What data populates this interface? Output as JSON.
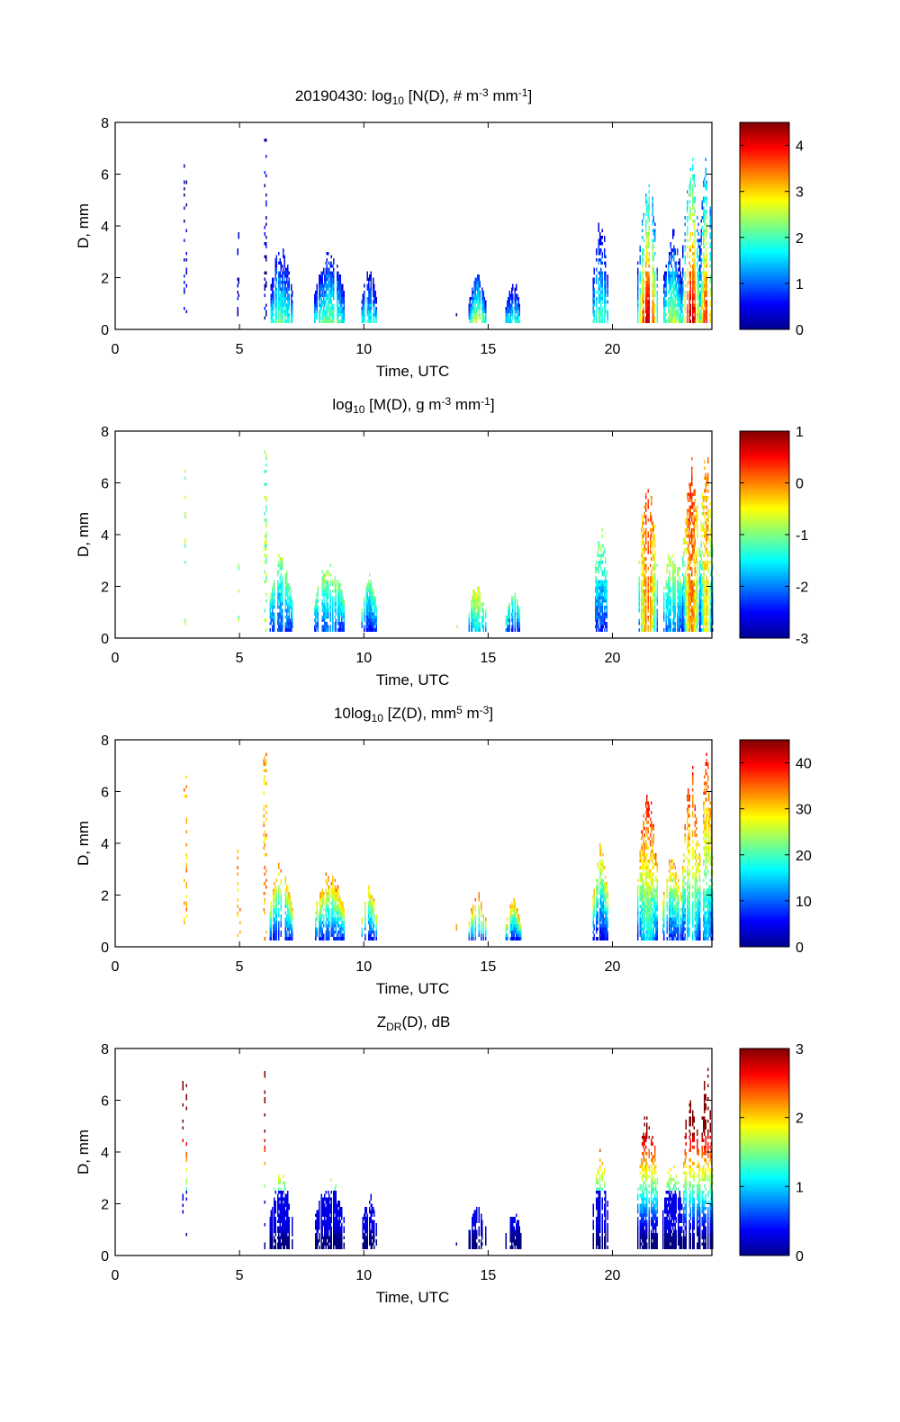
{
  "figure": {
    "date": "20190430",
    "colormap": "jet",
    "background": "#ffffff"
  },
  "chart_data": [
    {
      "type": "heatmap",
      "id": "nd",
      "title_parts": [
        {
          "text": "20190430: log",
          "style": "normal"
        },
        {
          "text": "10",
          "style": "sub"
        },
        {
          "text": " [N(D), # m",
          "style": "normal"
        },
        {
          "text": "-3",
          "style": "sup"
        },
        {
          "text": " mm",
          "style": "normal"
        },
        {
          "text": "-1",
          "style": "sup"
        },
        {
          "text": "]",
          "style": "normal"
        }
      ],
      "xlabel": "Time, UTC",
      "ylabel": "D, mm",
      "xlim": [
        0,
        24
      ],
      "ylim": [
        0,
        8
      ],
      "xticks": [
        0,
        5,
        10,
        15,
        20
      ],
      "yticks": [
        0,
        2,
        4,
        6,
        8
      ],
      "colorbar": {
        "range": [
          0,
          4.5
        ],
        "ticks": [
          0,
          1,
          2,
          3,
          4
        ]
      },
      "field": "number_concentration",
      "bottom_value": 2.0,
      "top_value": 0.3,
      "peak_boost": 2.5
    },
    {
      "type": "heatmap",
      "id": "md",
      "title_parts": [
        {
          "text": "log",
          "style": "normal"
        },
        {
          "text": "10",
          "style": "sub"
        },
        {
          "text": " [M(D), g m",
          "style": "normal"
        },
        {
          "text": "-3",
          "style": "sup"
        },
        {
          "text": " mm",
          "style": "normal"
        },
        {
          "text": "-1",
          "style": "sup"
        },
        {
          "text": "]",
          "style": "normal"
        }
      ],
      "xlabel": "Time, UTC",
      "ylabel": "D, mm",
      "xlim": [
        0,
        24
      ],
      "ylim": [
        0,
        8
      ],
      "xticks": [
        0,
        5,
        10,
        15,
        20
      ],
      "yticks": [
        0,
        2,
        4,
        6,
        8
      ],
      "colorbar": {
        "range": [
          -3,
          1
        ],
        "ticks": [
          1,
          0,
          -1,
          -2,
          -3
        ]
      },
      "field": "mass_spectrum",
      "bottom_value": -2.6,
      "top_value": -1.0,
      "peak_boost": 2.6
    },
    {
      "type": "heatmap",
      "id": "zd",
      "title_parts": [
        {
          "text": "10log",
          "style": "normal"
        },
        {
          "text": "10",
          "style": "sub"
        },
        {
          "text": " [Z(D),  mm",
          "style": "normal"
        },
        {
          "text": "5",
          "style": "sup"
        },
        {
          "text": " m",
          "style": "normal"
        },
        {
          "text": "-3",
          "style": "sup"
        },
        {
          "text": "]",
          "style": "normal"
        }
      ],
      "xlabel": "Time, UTC",
      "ylabel": "D, mm",
      "xlim": [
        0,
        24
      ],
      "ylim": [
        0,
        8
      ],
      "xticks": [
        0,
        5,
        10,
        15,
        20
      ],
      "yticks": [
        0,
        2,
        4,
        6,
        8
      ],
      "colorbar": {
        "range": [
          0,
          45
        ],
        "ticks": [
          40,
          30,
          20,
          10,
          0
        ]
      },
      "field": "reflectivity_spectrum",
      "bottom_value": 2,
      "top_value": 32,
      "peak_boost": 14
    },
    {
      "type": "heatmap",
      "id": "zdr",
      "title_parts": [
        {
          "text": "Z",
          "style": "normal"
        },
        {
          "text": "DR",
          "style": "sub"
        },
        {
          "text": "(D), dB",
          "style": "normal"
        }
      ],
      "xlabel": "Time, UTC",
      "ylabel": "D, mm",
      "xlim": [
        0,
        24
      ],
      "ylim": [
        0,
        8
      ],
      "xticks": [
        0,
        5,
        10,
        15,
        20
      ],
      "yticks": [
        0,
        2,
        4,
        6,
        8
      ],
      "colorbar": {
        "range": [
          0,
          3
        ],
        "ticks": [
          3,
          2,
          1,
          0
        ]
      },
      "field": "differential_reflectivity",
      "size_driven": true
    }
  ],
  "rain_events": [
    {
      "t0": 2.7,
      "t1": 2.85,
      "dmax": 6.8,
      "sparse": true
    },
    {
      "t0": 4.9,
      "t1": 5.0,
      "dmax": 3.8,
      "sparse": true
    },
    {
      "t0": 5.95,
      "t1": 6.05,
      "dmax": 7.5,
      "sparse": true
    },
    {
      "t0": 6.2,
      "t1": 7.1,
      "dmax": 3.3,
      "peak": 0.1
    },
    {
      "t0": 8.0,
      "t1": 9.2,
      "dmax": 3.0,
      "peak": 0.15
    },
    {
      "t0": 9.9,
      "t1": 10.5,
      "dmax": 2.5,
      "peak": 0.0
    },
    {
      "t0": 13.7,
      "t1": 13.75,
      "dmax": 0.8,
      "sparse": true
    },
    {
      "t0": 14.2,
      "t1": 14.9,
      "dmax": 2.1,
      "peak": 0.35
    },
    {
      "t0": 15.7,
      "t1": 16.3,
      "dmax": 1.8,
      "peak": 0.0
    },
    {
      "t0": 19.2,
      "t1": 19.8,
      "dmax": 4.3,
      "peak": 0.05
    },
    {
      "t0": 21.0,
      "t1": 21.8,
      "dmax": 6.1,
      "peak": 1.0
    },
    {
      "t0": 22.0,
      "t1": 22.8,
      "dmax": 3.8,
      "peak": 0.25
    },
    {
      "t0": 22.8,
      "t1": 23.5,
      "dmax": 7.1,
      "peak": 1.0
    },
    {
      "t0": 23.5,
      "t1": 24.0,
      "dmax": 7.7,
      "peak": 0.8
    }
  ]
}
